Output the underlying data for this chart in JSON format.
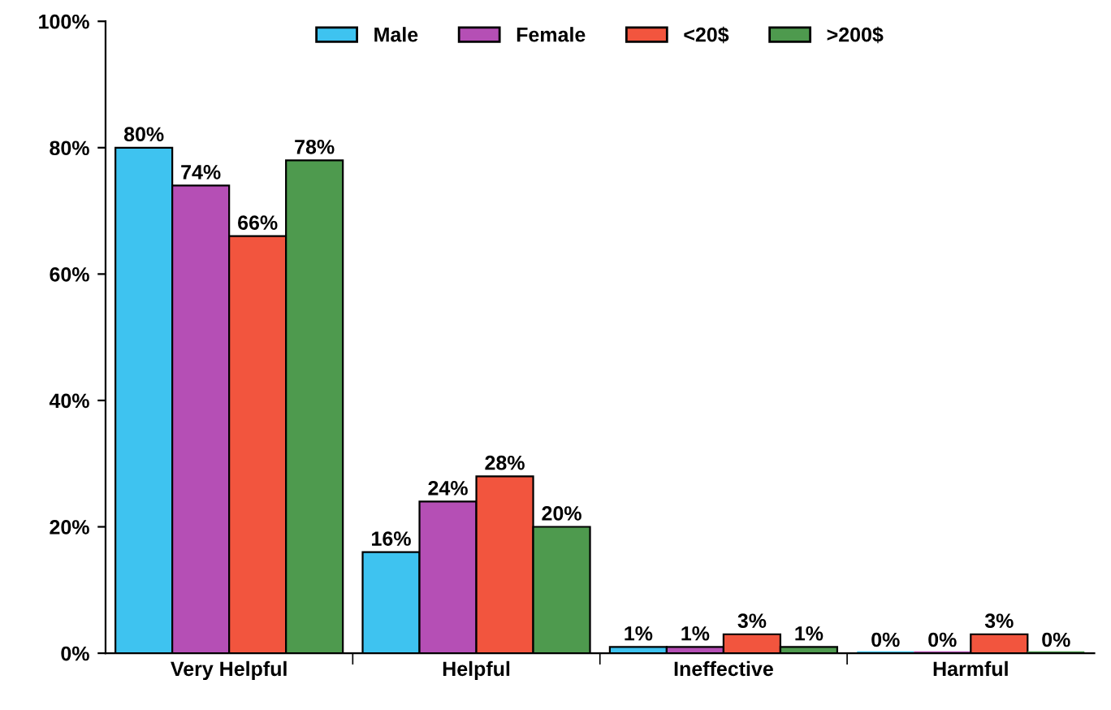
{
  "chart_data": {
    "type": "bar",
    "categories": [
      "Very Helpful",
      "Helpful",
      "Ineffective",
      "Harmful"
    ],
    "series": [
      {
        "name": "Male",
        "color": "#3ec3f0",
        "values": [
          80,
          16,
          1,
          0
        ],
        "value_labels": [
          "80%",
          "16%",
          "1%",
          "0%"
        ]
      },
      {
        "name": "Female",
        "color": "#b54fb5",
        "values": [
          74,
          24,
          1,
          0
        ],
        "value_labels": [
          "74%",
          "24%",
          "1%",
          "0%"
        ]
      },
      {
        "name": "<20$",
        "color": "#f2553e",
        "values": [
          66,
          28,
          3,
          3
        ],
        "value_labels": [
          "66%",
          "28%",
          "3%",
          "3%"
        ]
      },
      {
        "name": ">200$",
        "color": "#4e9a4e",
        "values": [
          78,
          20,
          1,
          0
        ],
        "value_labels": [
          "78%",
          "20%",
          "1%",
          "0%"
        ]
      }
    ],
    "ylim": [
      0,
      100
    ],
    "yticks": [
      {
        "value": 0,
        "label": "0%"
      },
      {
        "value": 20,
        "label": "20%"
      },
      {
        "value": 40,
        "label": "40%"
      },
      {
        "value": 60,
        "label": "60%"
      },
      {
        "value": 80,
        "label": "80%"
      },
      {
        "value": 100,
        "label": "100%"
      }
    ],
    "grid": false,
    "legend": "top"
  }
}
